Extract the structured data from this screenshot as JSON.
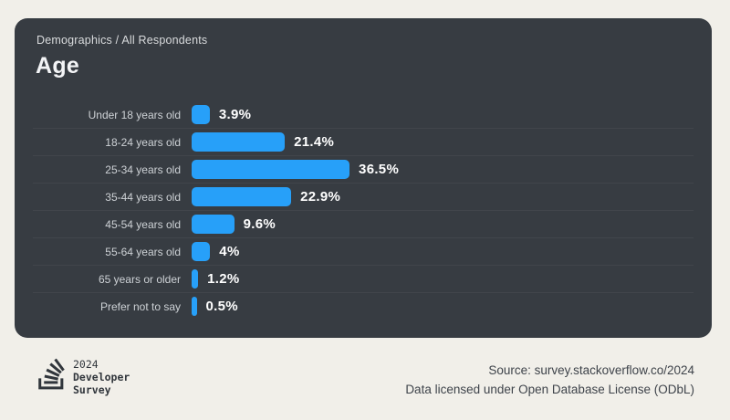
{
  "card": {
    "breadcrumb": "Demographics / All Respondents",
    "title": "Age"
  },
  "chart_data": {
    "type": "bar",
    "orientation": "horizontal",
    "title": "Age",
    "categories": [
      "Under 18 years old",
      "18-24 years old",
      "25-34 years old",
      "35-44 years old",
      "45-54 years old",
      "55-64 years old",
      "65 years or older",
      "Prefer not to say"
    ],
    "values": [
      3.9,
      21.4,
      36.5,
      22.9,
      9.6,
      4,
      1.2,
      0.5
    ],
    "value_labels": [
      "3.9%",
      "21.4%",
      "36.5%",
      "22.9%",
      "9.6%",
      "4%",
      "1.2%",
      "0.5%"
    ],
    "xlim": [
      0,
      40
    ],
    "legend": "none",
    "grid": "row-separator-lines",
    "bar_color": "#27a0f9"
  },
  "colors": {
    "page_bg": "#f1efe9",
    "card_bg": "#373c42",
    "bar_blue": "#27a0f9",
    "label_gray": "#ced2d6",
    "value_white": "#ffffff",
    "separator": "#40464d",
    "footer_text": "#3e434a",
    "logo_dark": "#31363c"
  },
  "footer": {
    "logo": {
      "icon": "stackoverflow-logo-icon",
      "year": "2024",
      "line1": "Developer",
      "line2": "Survey"
    },
    "source_line": "Source: survey.stackoverflow.co/2024",
    "license_line": "Data licensed under Open Database License (ODbL)"
  }
}
